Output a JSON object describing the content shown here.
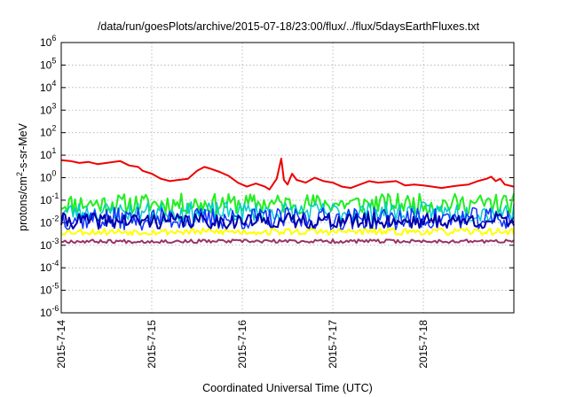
{
  "chart_data": {
    "type": "line",
    "title": "/data/run/goesPlots/archive/2015-07-18/23:00/flux/../flux/5daysEarthFluxes.txt",
    "xlabel": "Coordinated Universal Time (UTC)",
    "ylabel": {
      "pre": "protons/cm",
      "sup": "2",
      "post": "-s-sr-MeV"
    },
    "y_scale": "log",
    "ylim": [
      1e-06,
      1000000.0
    ],
    "xlim": [
      0,
      5
    ],
    "grid": true,
    "y_ticks": [
      {
        "exp": "-6"
      },
      {
        "exp": "-5"
      },
      {
        "exp": "-4"
      },
      {
        "exp": "-3"
      },
      {
        "exp": "-2"
      },
      {
        "exp": "-1"
      },
      {
        "exp": "0"
      },
      {
        "exp": "1"
      },
      {
        "exp": "2"
      },
      {
        "exp": "3"
      },
      {
        "exp": "4"
      },
      {
        "exp": "5"
      },
      {
        "exp": "6"
      }
    ],
    "y_tick_base": "10",
    "x_ticks": [
      {
        "value": 0,
        "label": "2015-7-14"
      },
      {
        "value": 1,
        "label": "2015-7-15"
      },
      {
        "value": 2,
        "label": "2015-7-16"
      },
      {
        "value": 3,
        "label": "2015-7-17"
      },
      {
        "value": 4,
        "label": "2015-7-18"
      }
    ],
    "series": [
      {
        "color": "#ee0000",
        "width": 2,
        "points": [
          [
            0,
            6
          ],
          [
            0.1,
            5.5
          ],
          [
            0.2,
            4.5
          ],
          [
            0.3,
            5
          ],
          [
            0.4,
            4
          ],
          [
            0.5,
            4.5
          ],
          [
            0.65,
            5.5
          ],
          [
            0.75,
            3.5
          ],
          [
            0.85,
            3
          ],
          [
            0.9,
            2
          ],
          [
            1.0,
            1.5
          ],
          [
            1.1,
            0.9
          ],
          [
            1.2,
            0.7
          ],
          [
            1.3,
            0.8
          ],
          [
            1.4,
            0.9
          ],
          [
            1.5,
            2
          ],
          [
            1.58,
            3
          ],
          [
            1.65,
            2.5
          ],
          [
            1.75,
            1.8
          ],
          [
            1.85,
            1.2
          ],
          [
            1.95,
            0.6
          ],
          [
            2.05,
            0.4
          ],
          [
            2.15,
            0.55
          ],
          [
            2.25,
            0.4
          ],
          [
            2.3,
            0.3
          ],
          [
            2.38,
            0.9
          ],
          [
            2.43,
            7
          ],
          [
            2.46,
            0.8
          ],
          [
            2.5,
            0.5
          ],
          [
            2.55,
            1.5
          ],
          [
            2.6,
            0.8
          ],
          [
            2.7,
            0.6
          ],
          [
            2.8,
            1.0
          ],
          [
            2.9,
            0.7
          ],
          [
            3.0,
            0.6
          ],
          [
            3.1,
            0.4
          ],
          [
            3.2,
            0.35
          ],
          [
            3.3,
            0.5
          ],
          [
            3.4,
            0.7
          ],
          [
            3.5,
            0.6
          ],
          [
            3.6,
            0.65
          ],
          [
            3.7,
            0.7
          ],
          [
            3.8,
            0.45
          ],
          [
            3.9,
            0.5
          ],
          [
            4.0,
            0.45
          ],
          [
            4.1,
            0.4
          ],
          [
            4.2,
            0.35
          ],
          [
            4.3,
            0.4
          ],
          [
            4.4,
            0.45
          ],
          [
            4.5,
            0.5
          ],
          [
            4.6,
            0.7
          ],
          [
            4.7,
            0.9
          ],
          [
            4.75,
            1.1
          ],
          [
            4.8,
            0.7
          ],
          [
            4.85,
            0.9
          ],
          [
            4.9,
            0.5
          ],
          [
            5.0,
            0.4
          ]
        ]
      },
      {
        "color": "#22ee22",
        "width": 2,
        "base": 0.07,
        "amp": 0.45,
        "seed": 11
      },
      {
        "color": "#00cccc",
        "width": 1.5,
        "base": 0.03,
        "amp": 0.45,
        "seed": 23
      },
      {
        "color": "#1133ff",
        "width": 1.5,
        "base": 0.015,
        "amp": 0.5,
        "seed": 37
      },
      {
        "color": "#0000aa",
        "width": 2,
        "base": 0.012,
        "amp": 0.35,
        "seed": 41
      },
      {
        "color": "#ffff00",
        "width": 2,
        "base": 0.004,
        "amp": 0.15,
        "seed": 53
      },
      {
        "color": "#993366",
        "width": 2,
        "base": 0.0015,
        "amp": 0.08,
        "seed": 67
      }
    ]
  }
}
